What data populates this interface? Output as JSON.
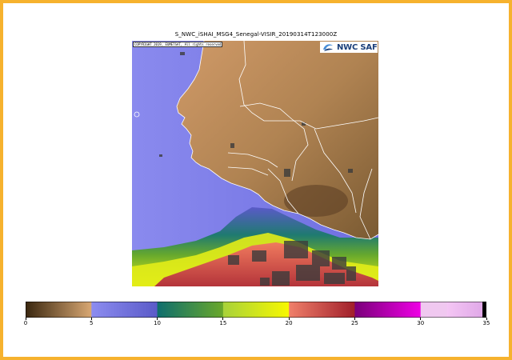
{
  "title": "S_NWC_iSHAI_MSG4_Senegal-VISIR_20190314T123000Z",
  "copyright": "COPYRIGHT 2019, EUMETSAT, All rights reserved",
  "logo": {
    "text": "NWC SAF",
    "icon": "nwcsaf-swirl-icon"
  },
  "colors": {
    "frame": "#f6b22e",
    "ocean_low": "#7f7fe6",
    "land": "#b08050",
    "border_lines": "#ffffff"
  },
  "colorbar": {
    "range": [
      0,
      35
    ],
    "ticks": [
      "0",
      "5",
      "10",
      "15",
      "20",
      "25",
      "30",
      "35"
    ],
    "segments": [
      {
        "from": 0,
        "to": 5,
        "start": "#3a2710",
        "end": "#d9a873"
      },
      {
        "from": 5,
        "to": 10,
        "start": "#8c8cf0",
        "end": "#5a5ac8"
      },
      {
        "from": 10,
        "to": 15,
        "start": "#0e6e6e",
        "end": "#6aa82a"
      },
      {
        "from": 15,
        "to": 20,
        "start": "#a8d23a",
        "end": "#f8f800"
      },
      {
        "from": 20,
        "to": 25,
        "start": "#f0806a",
        "end": "#a01e2a"
      },
      {
        "from": 25,
        "to": 30,
        "start": "#7a007a",
        "end": "#f000e6"
      },
      {
        "from": 30,
        "to": 32,
        "start": "#f0c8f0",
        "end": "#f0c8f0"
      },
      {
        "from": 32,
        "to": 34.7,
        "start": "#f4c6f4",
        "end": "#e0a8e8"
      },
      {
        "from": 34.7,
        "to": 35,
        "start": "#000000",
        "end": "#000000"
      }
    ]
  }
}
